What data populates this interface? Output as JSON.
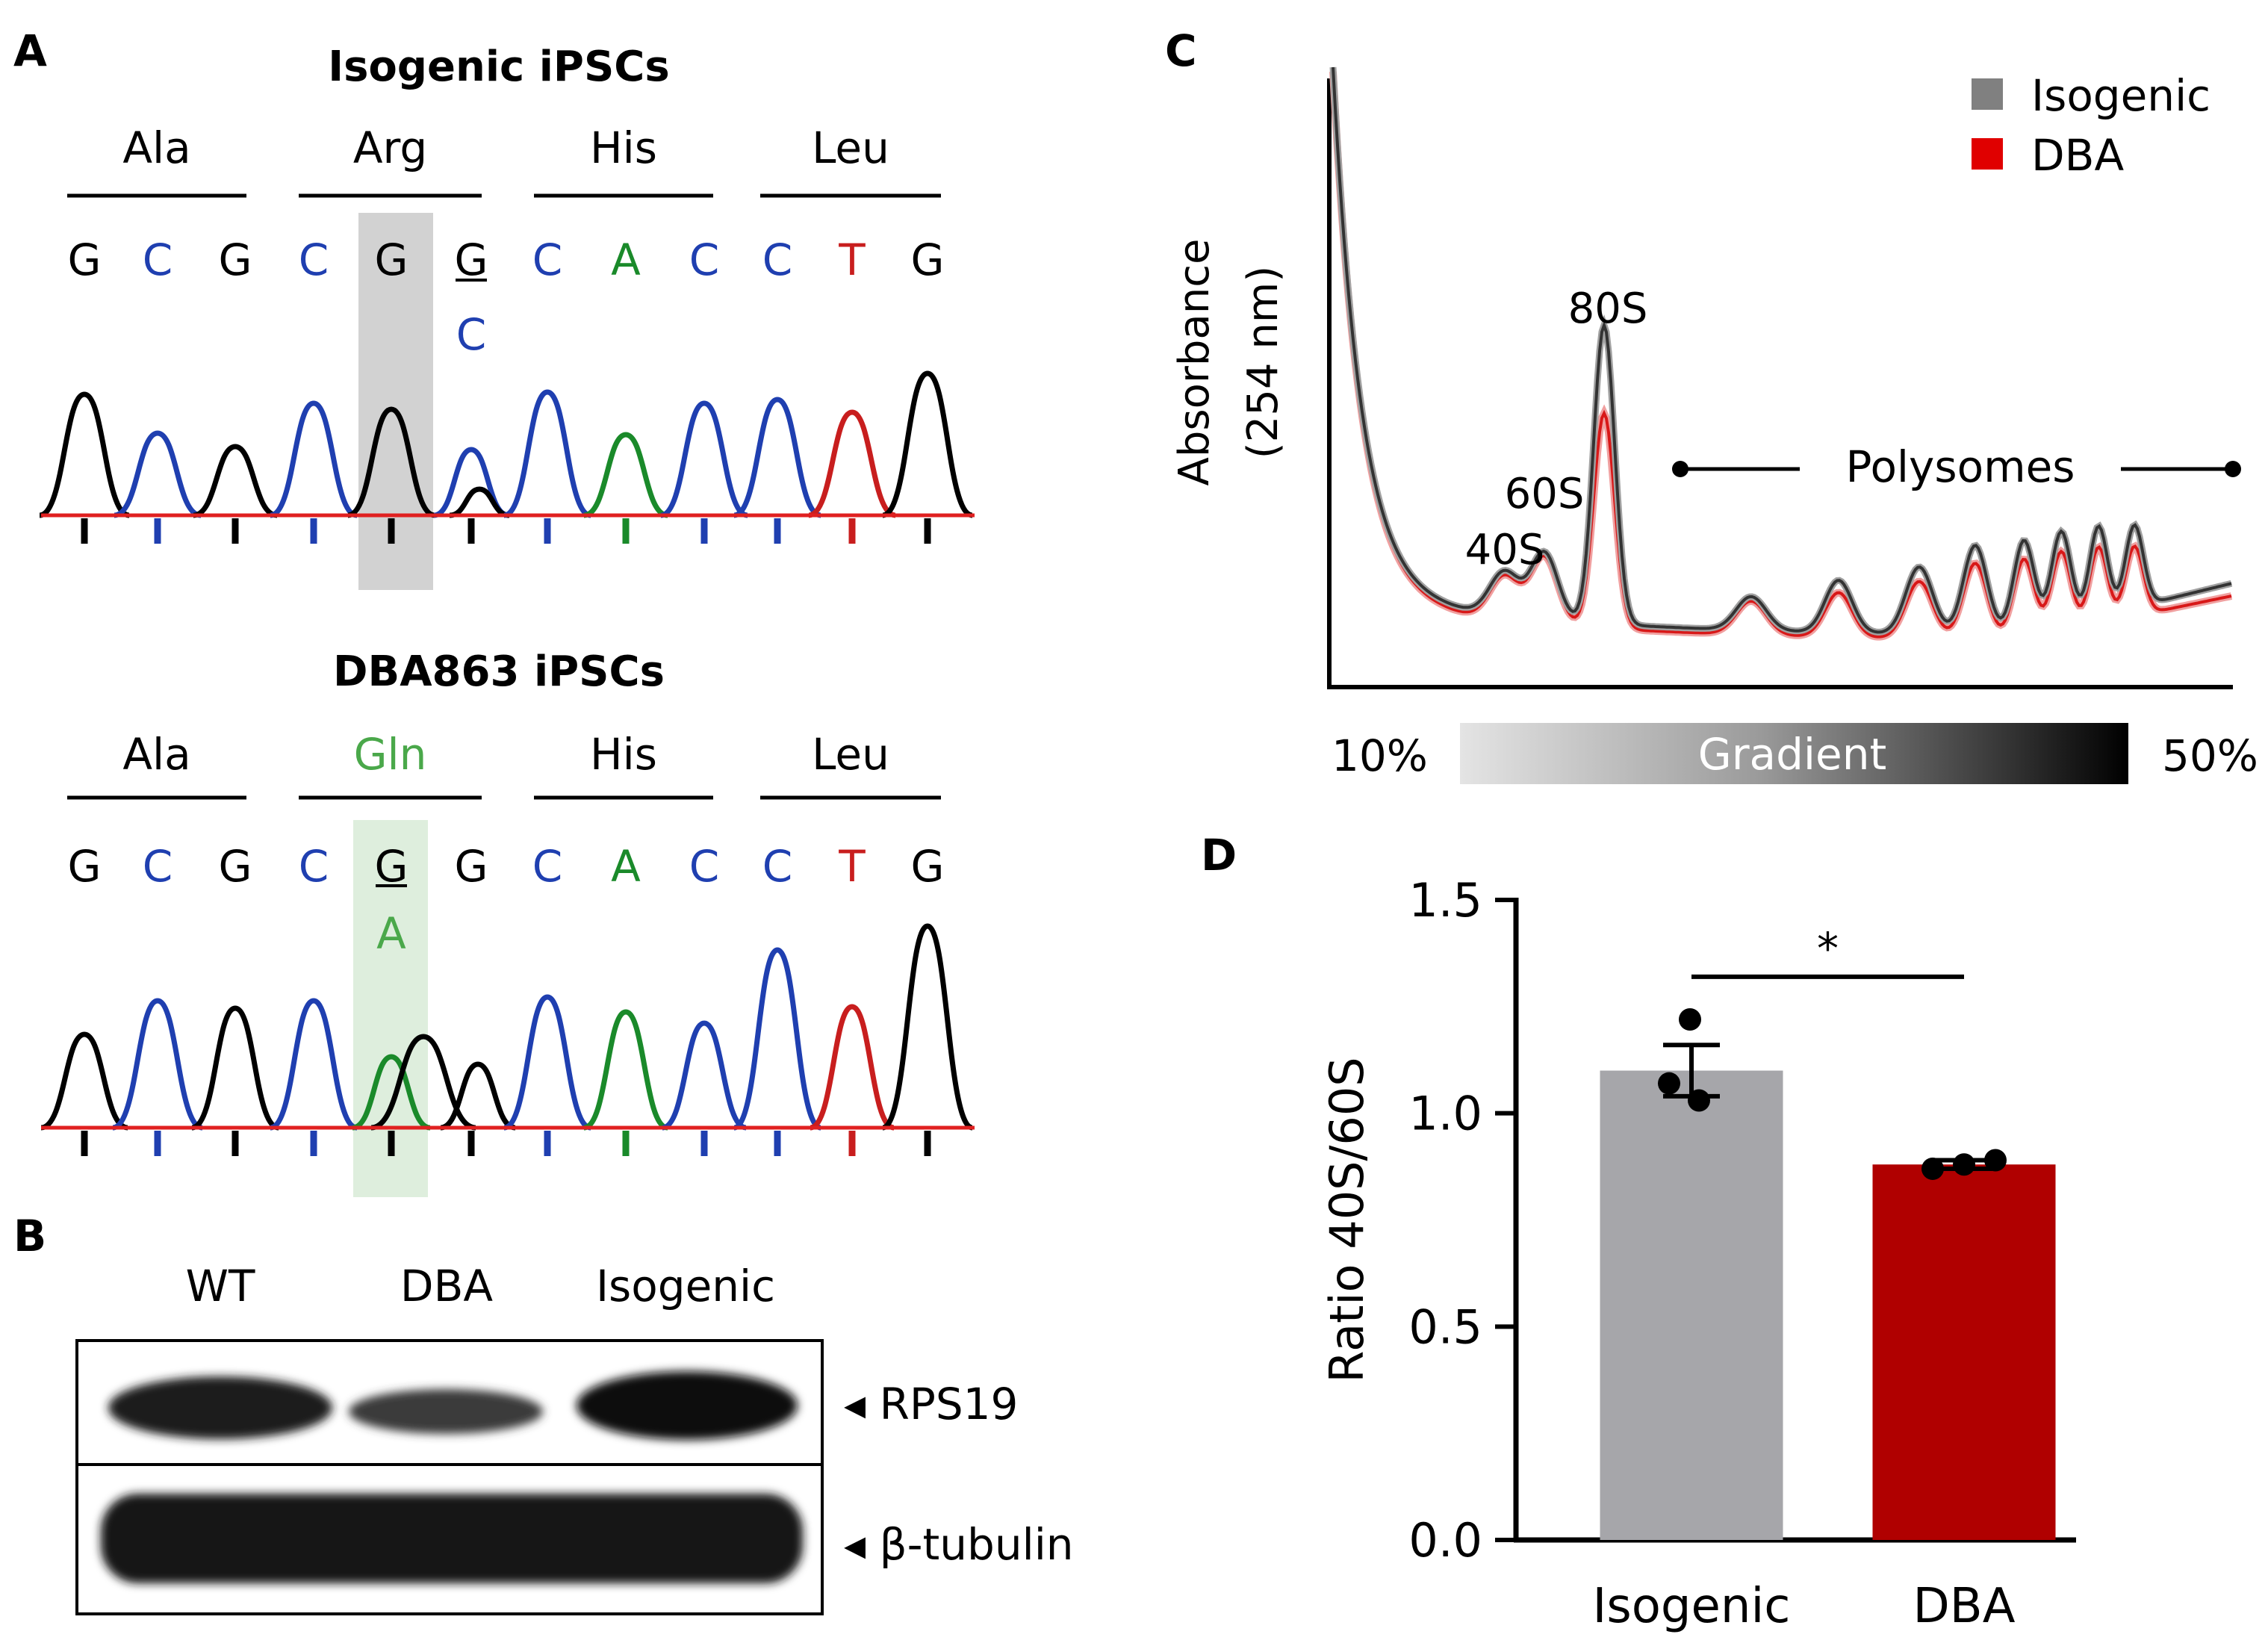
{
  "panels": {
    "a": {
      "letter": "A",
      "top": {
        "title": "Isogenic iPSCs",
        "codons": [
          "Ala",
          "Arg",
          "His",
          "Leu"
        ],
        "bases": [
          "G",
          "C",
          "G",
          "C",
          "G",
          "G",
          "C",
          "A",
          "C",
          "C",
          "T",
          "G"
        ],
        "alt_base": "C"
      },
      "bottom": {
        "title": "DBA863 iPSCs",
        "codons": [
          "Ala",
          "Gln",
          "His",
          "Leu"
        ],
        "bases": [
          "G",
          "C",
          "G",
          "C",
          "G",
          "G",
          "C",
          "A",
          "C",
          "C",
          "T",
          "G"
        ],
        "alt_base": "A"
      },
      "colors": {
        "G": "#000000",
        "C": "#1f3fb0",
        "A": "#1a8a2a",
        "T": "#c81e1e",
        "Gln": "#4aa84a"
      }
    },
    "b": {
      "letter": "B",
      "lanes": [
        "WT",
        "DBA",
        "Isogenic"
      ],
      "bands": [
        "RPS19",
        "β-tubulin"
      ],
      "arrow": "◂"
    },
    "c": {
      "letter": "C",
      "legend": [
        {
          "label": "Isogenic",
          "color": "#808080"
        },
        {
          "label": "DBA",
          "color": "#e00000"
        }
      ],
      "ylabel_line1": "Absorbance",
      "ylabel_line2": "(254 nm)",
      "peaks": [
        "40S",
        "60S",
        "80S"
      ],
      "polysomes": "Polysomes",
      "gradient_label": "Gradient",
      "gradient_low": "10%",
      "gradient_high": "50%"
    },
    "d": {
      "letter": "D"
    }
  },
  "chart_data": {
    "type": "bar",
    "categories": [
      "Isogenic",
      "DBA"
    ],
    "values": [
      1.1,
      0.88
    ],
    "errors": [
      0.06,
      0.01
    ],
    "points": [
      [
        1.22,
        1.07,
        1.03
      ],
      [
        0.87,
        0.88,
        0.89
      ]
    ],
    "colors": [
      "#a6a6aa",
      "#b00000"
    ],
    "ylabel": "Ratio 40S/60S",
    "ylim": [
      0,
      1.5
    ],
    "yticks": [
      0.0,
      0.5,
      1.0,
      1.5
    ],
    "ytick_labels": [
      "0.0",
      "0.5",
      "1.0",
      "1.5"
    ],
    "significance": "*"
  }
}
